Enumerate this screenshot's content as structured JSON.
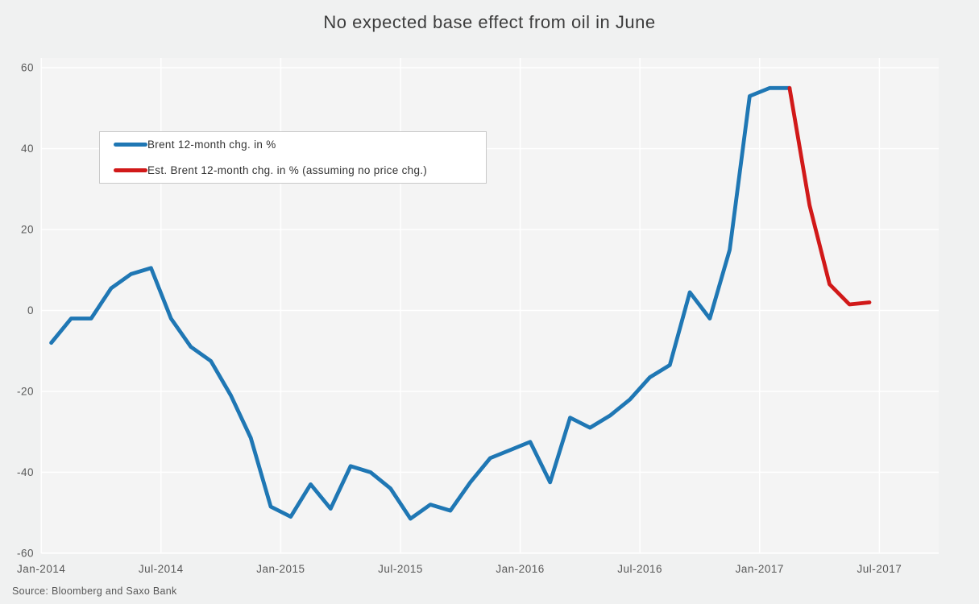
{
  "title": "No expected base effect from oil in June",
  "source": "Source: Bloomberg and Saxo Bank",
  "colors": {
    "background": "#f0f1f1",
    "plot_background": "#f4f4f4",
    "gridline": "#ffffff",
    "brent_line": "#1f77b4",
    "estimate_line": "#d11919",
    "tick_text": "#595959",
    "title_text": "#3d3d3d"
  },
  "legend": [
    {
      "label": "Brent 12-month chg. in %",
      "color": "#1f77b4"
    },
    {
      "label": "Est. Brent 12-month chg. in % (assuming no price chg.)",
      "color": "#d11919"
    }
  ],
  "chart_data": {
    "type": "line",
    "title": "No expected base effect from oil in June",
    "xlabel": "",
    "ylabel": "",
    "ylim": [
      -60,
      60
    ],
    "grid": true,
    "legend_position": "upper-left-inside",
    "y_ticks": [
      60,
      40,
      20,
      0,
      -20,
      -40,
      -60
    ],
    "x_ticks": [
      "Jan-2014",
      "Jul-2014",
      "Jan-2015",
      "Jul-2015",
      "Jan-2016",
      "Jul-2016",
      "Jan-2017",
      "Jul-2017"
    ],
    "x_tick_month_index": [
      0,
      6,
      12,
      18,
      24,
      30,
      36,
      42
    ],
    "months_start": "Jan-2014",
    "series": [
      {
        "name": "Brent 12-month chg. in %",
        "color": "#1f77b4",
        "start_month_index": 0,
        "months": [
          "Jan-2014",
          "Feb-2014",
          "Mar-2014",
          "Apr-2014",
          "May-2014",
          "Jun-2014",
          "Jul-2014",
          "Aug-2014",
          "Sep-2014",
          "Oct-2014",
          "Nov-2014",
          "Dec-2014",
          "Jan-2015",
          "Feb-2015",
          "Mar-2015",
          "Apr-2015",
          "May-2015",
          "Jun-2015",
          "Jul-2015",
          "Aug-2015",
          "Sep-2015",
          "Oct-2015",
          "Nov-2015",
          "Dec-2015",
          "Jan-2016",
          "Feb-2016",
          "Mar-2016",
          "Apr-2016",
          "May-2016",
          "Jun-2016",
          "Jul-2016",
          "Aug-2016",
          "Sep-2016",
          "Oct-2016",
          "Nov-2016",
          "Dec-2016",
          "Jan-2017",
          "Feb-2017"
        ],
        "values": [
          -8,
          -2,
          -2,
          5.5,
          9,
          10.5,
          -2,
          -9,
          -12.5,
          -21,
          -31.5,
          -48.5,
          -51,
          -43,
          -49,
          -38.5,
          -40,
          -44,
          -51.5,
          -48,
          -49.5,
          -42.5,
          -36.5,
          -34.5,
          -32.5,
          -42.5,
          -26.5,
          -29,
          -26,
          -22,
          -16.5,
          -13.5,
          4.5,
          -2,
          15,
          53,
          55,
          55
        ]
      },
      {
        "name": "Est. Brent 12-month chg. in % (assuming no price chg.)",
        "color": "#d11919",
        "start_month_index": 37,
        "months": [
          "Feb-2017",
          "Mar-2017",
          "Apr-2017",
          "May-2017",
          "Jun-2017"
        ],
        "values": [
          55,
          26,
          6.5,
          1.5,
          2
        ]
      }
    ]
  }
}
